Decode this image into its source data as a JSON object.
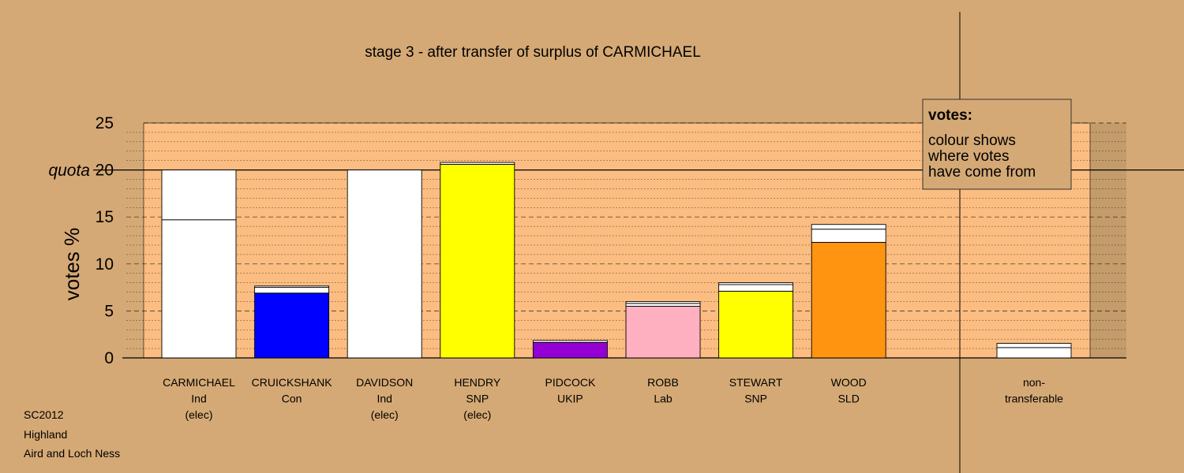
{
  "chart_data": {
    "type": "bar",
    "title": "stage 3 - after transfer of surplus of CARMICHAEL",
    "ylabel": "votes %",
    "ylim": [
      0,
      25
    ],
    "yticks": [
      0,
      5,
      10,
      15,
      20,
      25
    ],
    "quota": {
      "label": "quota",
      "value": 20
    },
    "grid": true,
    "legend": {
      "title": "votes:",
      "lines": [
        "colour shows",
        "where votes",
        "have come from"
      ],
      "placement": "top-right"
    },
    "categories": [
      {
        "name": "CARMICHAEL",
        "party": "Ind",
        "note": "(elec)",
        "segments": [
          {
            "value": 14.7,
            "color": "#ffffff"
          },
          {
            "value": 5.3,
            "color": "#ffffff"
          }
        ]
      },
      {
        "name": "CRUICKSHANK",
        "party": "Con",
        "note": "",
        "segments": [
          {
            "value": 6.9,
            "color": "#0000ff"
          },
          {
            "value": 0.6,
            "color": "#ffffff"
          },
          {
            "value": 0.15,
            "color": "#ffffff"
          }
        ]
      },
      {
        "name": "DAVIDSON",
        "party": "Ind",
        "note": "(elec)",
        "segments": [
          {
            "value": 20.0,
            "color": "#ffffff"
          }
        ]
      },
      {
        "name": "HENDRY",
        "party": "SNP",
        "note": "(elec)",
        "segments": [
          {
            "value": 20.6,
            "color": "#ffff00"
          },
          {
            "value": 0.2,
            "color": "#ffffff"
          }
        ]
      },
      {
        "name": "PIDCOCK",
        "party": "UKIP",
        "note": "",
        "segments": [
          {
            "value": 1.65,
            "color": "#9400d3"
          },
          {
            "value": 0.2,
            "color": "#ffffff"
          }
        ]
      },
      {
        "name": "ROBB",
        "party": "Lab",
        "note": "",
        "segments": [
          {
            "value": 5.5,
            "color": "#ffb0c0"
          },
          {
            "value": 0.3,
            "color": "#ffffff"
          },
          {
            "value": 0.2,
            "color": "#ffffff"
          }
        ]
      },
      {
        "name": "STEWART",
        "party": "SNP",
        "note": "",
        "segments": [
          {
            "value": 7.1,
            "color": "#ffff00"
          },
          {
            "value": 0.7,
            "color": "#ffffff"
          },
          {
            "value": 0.2,
            "color": "#ffffff"
          }
        ]
      },
      {
        "name": "WOOD",
        "party": "SLD",
        "note": "",
        "segments": [
          {
            "value": 12.3,
            "color": "#ff9410"
          },
          {
            "value": 1.4,
            "color": "#ffffff"
          },
          {
            "value": 0.5,
            "color": "#ffffff"
          }
        ]
      }
    ],
    "nontransferable": {
      "label_lines": [
        "non-",
        "transferable"
      ],
      "segments": [
        {
          "value": 1.1,
          "color": "#ffffff"
        },
        {
          "value": 0.45,
          "color": "#ffffff"
        }
      ]
    },
    "footer": [
      "SC2012",
      "Highland",
      "Aird and Loch Ness"
    ],
    "colors": {
      "background": "#d5a975",
      "plot_area": "#fbbd81"
    }
  }
}
